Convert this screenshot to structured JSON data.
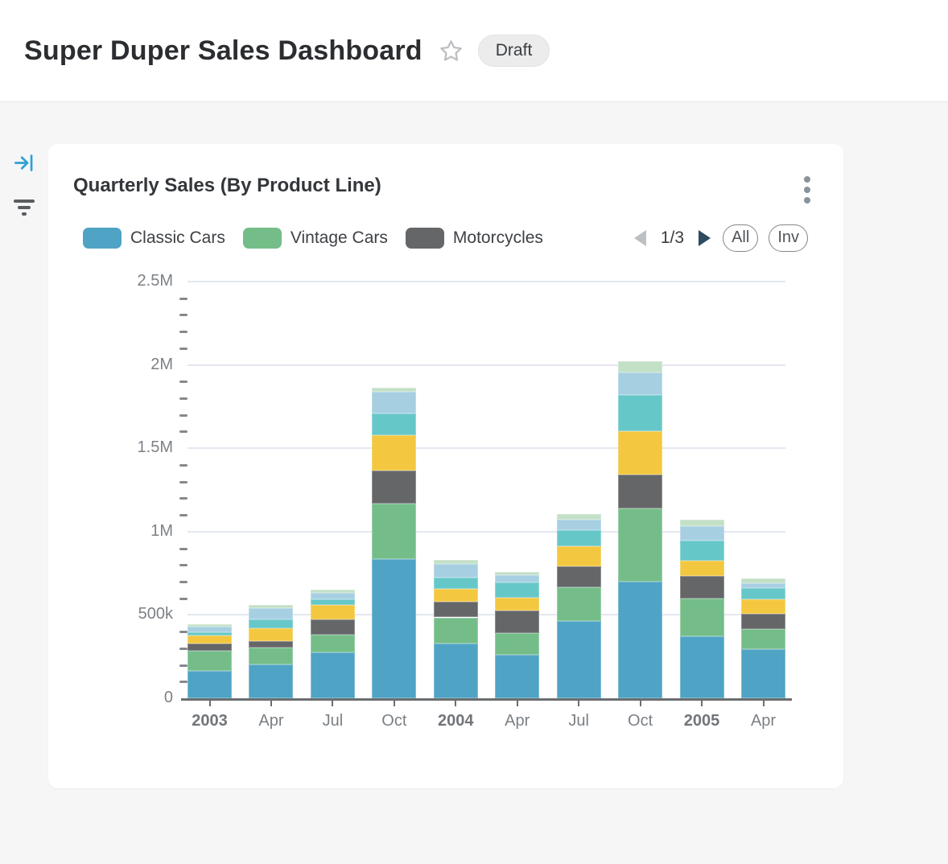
{
  "header": {
    "title": "Super Duper Sales Dashboard",
    "status_badge": "Draft"
  },
  "card": {
    "title": "Quarterly Sales (By Product Line)",
    "legend": {
      "items": [
        {
          "label": "Classic Cars",
          "color": "#4FA3C5"
        },
        {
          "label": "Vintage Cars",
          "color": "#74BD89"
        },
        {
          "label": "Motorcycles",
          "color": "#646668"
        }
      ],
      "page_indicator": "1/3",
      "all_label": "All",
      "invert_label": "Inv"
    }
  },
  "colors": {
    "page_background": "#F6F6F7",
    "card_background": "#FFFFFF",
    "rail_accent_blue": "#2FA0D6",
    "rail_icon_gray": "#5A5E61",
    "grid": "#E3E7EF",
    "axis": "#6B6E70",
    "axis_label": "#7C8187",
    "pagination_next": "#2E4B5F",
    "pagination_prev_disabled": "#BCC0C4"
  },
  "chart_data": {
    "type": "bar",
    "stacked": true,
    "title": "Quarterly Sales (By Product Line)",
    "legend_position": "top",
    "grid": true,
    "categories": [
      {
        "label": "2003",
        "bold": true
      },
      {
        "label": "Apr",
        "bold": false
      },
      {
        "label": "Jul",
        "bold": false
      },
      {
        "label": "Oct",
        "bold": false
      },
      {
        "label": "2004",
        "bold": true
      },
      {
        "label": "Apr",
        "bold": false
      },
      {
        "label": "Jul",
        "bold": false
      },
      {
        "label": "Oct",
        "bold": false
      },
      {
        "label": "2005",
        "bold": true
      },
      {
        "label": "Apr",
        "bold": false
      }
    ],
    "series": [
      {
        "name": "Classic Cars",
        "color": "#4FA3C5",
        "in_legend": true,
        "values": [
          165000,
          205000,
          275000,
          835000,
          330000,
          260000,
          465000,
          700000,
          370000,
          295000
        ]
      },
      {
        "name": "Vintage Cars",
        "color": "#74BD89",
        "in_legend": true,
        "values": [
          120000,
          100000,
          105000,
          335000,
          155000,
          130000,
          200000,
          440000,
          230000,
          120000
        ]
      },
      {
        "name": "Motorcycles",
        "color": "#646668",
        "in_legend": true,
        "values": [
          45000,
          40000,
          95000,
          195000,
          95000,
          135000,
          125000,
          200000,
          135000,
          90000
        ]
      },
      {
        "name": "",
        "color": "#F3C73F",
        "in_legend": false,
        "values": [
          45000,
          75000,
          85000,
          215000,
          75000,
          80000,
          120000,
          260000,
          90000,
          90000
        ]
      },
      {
        "name": "",
        "color": "#66C7C8",
        "in_legend": false,
        "values": [
          20000,
          55000,
          35000,
          130000,
          70000,
          90000,
          100000,
          220000,
          120000,
          65000
        ]
      },
      {
        "name": "",
        "color": "#A6CFE2",
        "in_legend": false,
        "values": [
          35000,
          65000,
          35000,
          130000,
          80000,
          45000,
          60000,
          135000,
          90000,
          30000
        ]
      },
      {
        "name": "",
        "color": "#C2E0C6",
        "in_legend": false,
        "values": [
          15000,
          20000,
          20000,
          25000,
          25000,
          20000,
          35000,
          65000,
          35000,
          30000
        ]
      }
    ],
    "y_axis": {
      "max": 2500000,
      "minor_interval": 100000,
      "ticks": [
        {
          "value": 0,
          "label": "0"
        },
        {
          "value": 500000,
          "label": "500k"
        },
        {
          "value": 1000000,
          "label": "1M"
        },
        {
          "value": 1500000,
          "label": "1.5M"
        },
        {
          "value": 2000000,
          "label": "2M"
        },
        {
          "value": 2500000,
          "label": "2.5M"
        }
      ]
    }
  }
}
